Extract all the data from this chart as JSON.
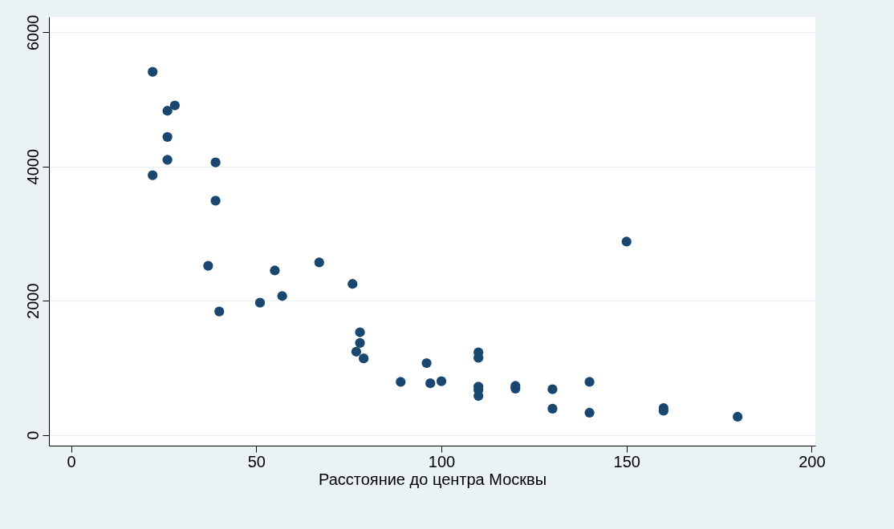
{
  "chart_data": {
    "type": "scatter",
    "xlabel": "Расстояние до центра Москвы",
    "xlim": [
      -6,
      201
    ],
    "ylim": [
      -160,
      6230
    ],
    "xticks": [
      0,
      50,
      100,
      150,
      200
    ],
    "yticks": [
      0,
      2000,
      4000,
      6000
    ],
    "grid": "y",
    "marker": "circle",
    "series": [
      {
        "color": "#1a476f",
        "x": [
          22,
          26,
          28,
          26,
          26,
          22,
          39,
          39,
          37,
          40,
          51,
          55,
          57,
          67,
          76,
          78,
          78,
          77,
          79,
          89,
          96,
          97,
          100,
          110,
          110,
          110,
          110,
          110,
          120,
          120,
          130,
          130,
          140,
          140,
          150,
          160,
          160,
          180
        ],
        "values": [
          5410,
          4830,
          4910,
          4440,
          4100,
          3870,
          4060,
          3490,
          2520,
          1840,
          1970,
          2450,
          2070,
          2570,
          2250,
          1530,
          1370,
          1240,
          1140,
          790,
          1070,
          770,
          800,
          1230,
          1150,
          720,
          670,
          580,
          730,
          690,
          680,
          390,
          790,
          330,
          2880,
          400,
          360,
          270
        ]
      }
    ]
  }
}
